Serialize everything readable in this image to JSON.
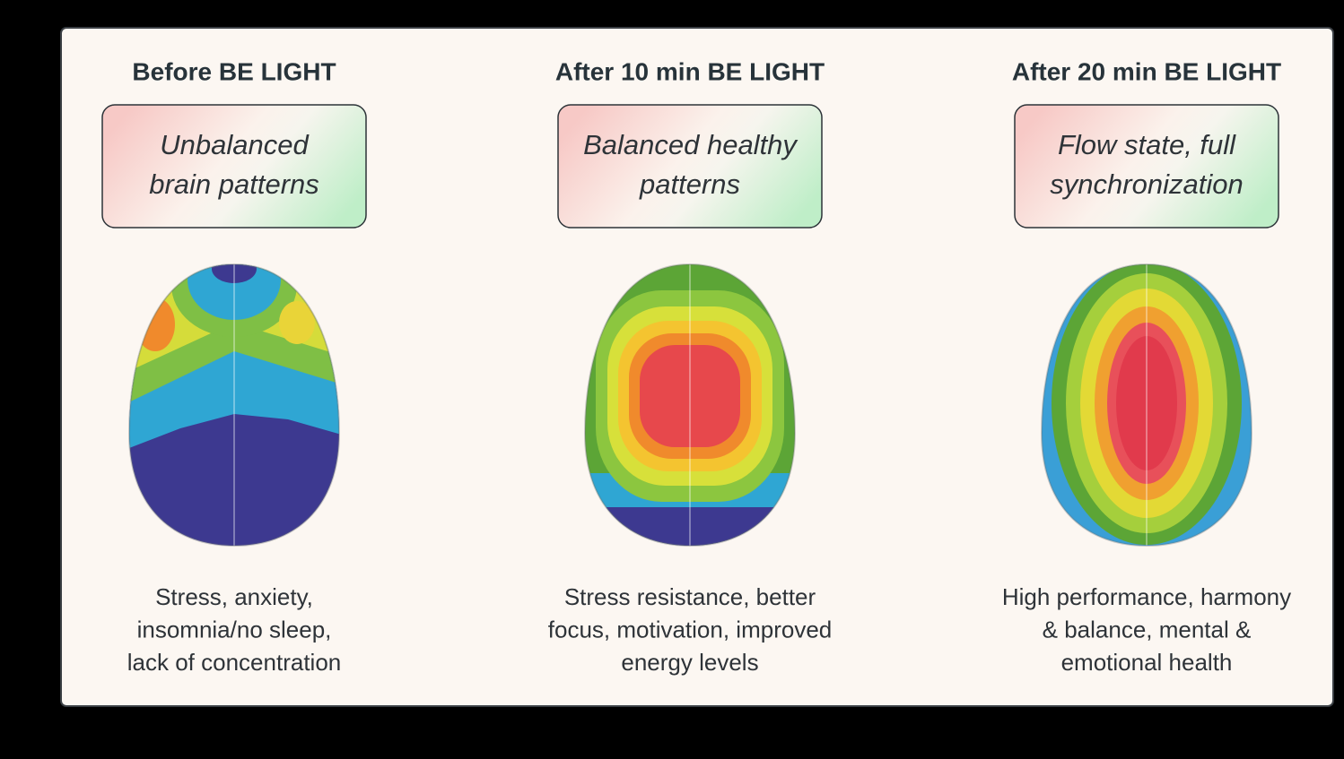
{
  "columns": [
    {
      "title": "Before BE LIGHT",
      "badge": [
        "Unbalanced",
        "brain patterns"
      ],
      "description": [
        "Stress, anxiety,",
        "insomnia/no sleep,",
        "lack of concentration"
      ]
    },
    {
      "title": "After 10 min BE LIGHT",
      "badge": [
        "Balanced healthy",
        "patterns"
      ],
      "description": [
        "Stress resistance, better",
        "focus, motivation, improved",
        "energy levels"
      ]
    },
    {
      "title": "After 20 min BE LIGHT",
      "badge": [
        "Flow state, full",
        "synchronization"
      ],
      "description": [
        "High performance, harmony",
        "& balance, mental &",
        "emotional health"
      ]
    }
  ]
}
